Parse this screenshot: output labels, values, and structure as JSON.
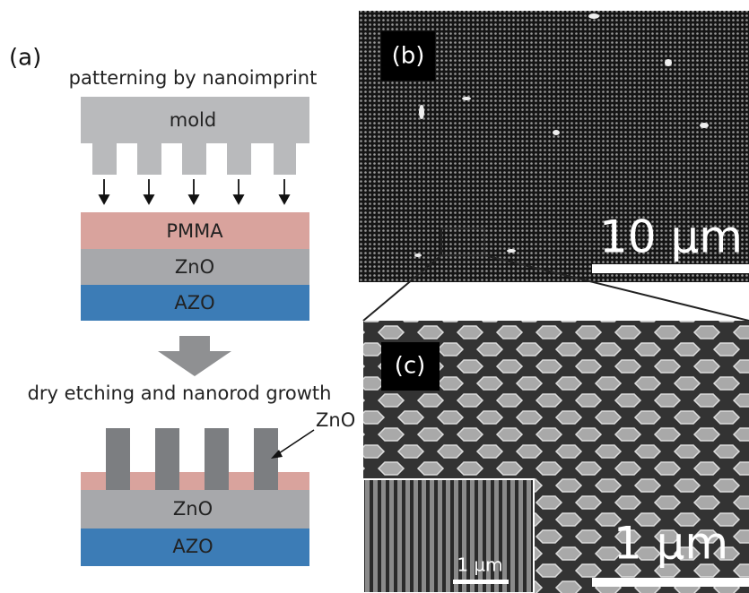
{
  "panel_a": {
    "label": "(a)",
    "step1": "patterning by nanoimprint",
    "mold": "mold",
    "layers_before": [
      "PMMA",
      "ZnO",
      "AZO"
    ],
    "step2": "dry etching and nanorod growth",
    "rod_label": "ZnO",
    "layers_after": [
      "ZnO",
      "AZO"
    ]
  },
  "panel_b": {
    "label": "(b)",
    "scale": "10 µm"
  },
  "panel_c": {
    "label": "(c)",
    "scale": "1 µm",
    "inset_scale": "1 µm"
  }
}
